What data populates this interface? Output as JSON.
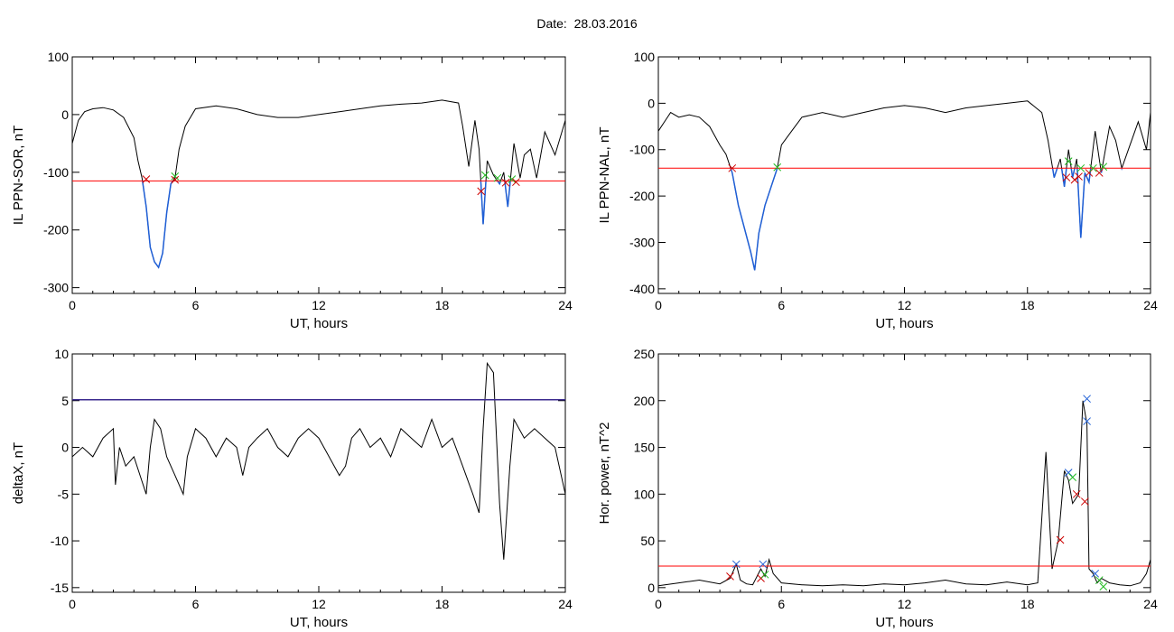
{
  "header": {
    "date_label": "Date:",
    "date_value": "28.03.2016"
  },
  "chart_data": [
    {
      "type": "line",
      "xlabel": "UT, hours",
      "ylabel": "IL PPN-SOR, nT",
      "xlim": [
        0,
        24
      ],
      "ylim": [
        -310,
        100
      ],
      "xticks": [
        0,
        6,
        12,
        18,
        24
      ],
      "yticks": [
        100,
        0,
        -100,
        -200,
        -300
      ],
      "threshold": -115,
      "colors": {
        "line": "#000000",
        "threshold": "#ff0000",
        "below": "#1f5fd6",
        "start_marker": "#cc0000",
        "end_marker": "#22bb22"
      },
      "series": [
        {
          "x": [
            0,
            0.3,
            0.6,
            1,
            1.5,
            2,
            2.5,
            3,
            3.2,
            3.4,
            3.6,
            3.8,
            4,
            4.2,
            4.4,
            4.6,
            4.8,
            5,
            5.2,
            5.5,
            6,
            7,
            8,
            9,
            10,
            11,
            12,
            13,
            14,
            15,
            16,
            17,
            18,
            18.8,
            19,
            19.3,
            19.6,
            19.8,
            20,
            20.2,
            20.5,
            20.8,
            21,
            21.2,
            21.5,
            21.8,
            22,
            22.3,
            22.6,
            23,
            23.5,
            24
          ],
          "y": [
            -50,
            -10,
            5,
            10,
            12,
            8,
            -5,
            -40,
            -80,
            -110,
            -160,
            -230,
            -255,
            -265,
            -240,
            -170,
            -120,
            -110,
            -60,
            -20,
            10,
            15,
            10,
            0,
            -5,
            -5,
            0,
            5,
            10,
            15,
            18,
            20,
            25,
            20,
            -20,
            -90,
            -10,
            -60,
            -190,
            -80,
            -105,
            -120,
            -100,
            -160,
            -50,
            -110,
            -70,
            -60,
            -110,
            -30,
            -70,
            -10
          ]
        }
      ],
      "markers": [
        {
          "x": 3.6,
          "y": -112,
          "kind": "start"
        },
        {
          "x": 5.0,
          "y": -107,
          "kind": "end"
        },
        {
          "x": 5.0,
          "y": -113,
          "kind": "start"
        },
        {
          "x": 19.9,
          "y": -133,
          "kind": "start"
        },
        {
          "x": 20.1,
          "y": -105,
          "kind": "end"
        },
        {
          "x": 20.7,
          "y": -110,
          "kind": "end"
        },
        {
          "x": 21.1,
          "y": -118,
          "kind": "start"
        },
        {
          "x": 21.4,
          "y": -112,
          "kind": "end"
        },
        {
          "x": 21.6,
          "y": -117,
          "kind": "start"
        }
      ]
    },
    {
      "type": "line",
      "xlabel": "UT, hours",
      "ylabel": "IL PPN-NAL, nT",
      "xlim": [
        0,
        24
      ],
      "ylim": [
        -410,
        100
      ],
      "xticks": [
        0,
        6,
        12,
        18,
        24
      ],
      "yticks": [
        100,
        0,
        -100,
        -200,
        -300,
        -400
      ],
      "threshold": -140,
      "colors": {
        "line": "#000000",
        "threshold": "#ff0000",
        "below": "#1f5fd6",
        "start_marker": "#cc0000",
        "end_marker": "#22bb22"
      },
      "series": [
        {
          "x": [
            0,
            0.3,
            0.6,
            1,
            1.5,
            2,
            2.5,
            3,
            3.3,
            3.6,
            3.9,
            4.2,
            4.5,
            4.7,
            4.9,
            5.2,
            5.5,
            5.8,
            6,
            6.5,
            7,
            8,
            9,
            10,
            11,
            12,
            13,
            14,
            15,
            16,
            17,
            18,
            18.7,
            19,
            19.3,
            19.6,
            19.8,
            20,
            20.2,
            20.4,
            20.6,
            20.8,
            21,
            21.3,
            21.6,
            22,
            22.3,
            22.6,
            23,
            23.4,
            23.8,
            24
          ],
          "y": [
            -60,
            -40,
            -20,
            -30,
            -25,
            -30,
            -50,
            -90,
            -110,
            -150,
            -220,
            -270,
            -320,
            -360,
            -280,
            -220,
            -180,
            -140,
            -90,
            -60,
            -30,
            -20,
            -30,
            -20,
            -10,
            -5,
            -10,
            -20,
            -10,
            -5,
            0,
            5,
            -20,
            -80,
            -160,
            -120,
            -180,
            -100,
            -160,
            -120,
            -290,
            -150,
            -170,
            -60,
            -150,
            -50,
            -80,
            -140,
            -90,
            -40,
            -100,
            -20
          ]
        }
      ],
      "markers": [
        {
          "x": 3.6,
          "y": -140,
          "kind": "start"
        },
        {
          "x": 5.8,
          "y": -138,
          "kind": "end"
        },
        {
          "x": 19.9,
          "y": -160,
          "kind": "start"
        },
        {
          "x": 20.0,
          "y": -125,
          "kind": "end"
        },
        {
          "x": 20.3,
          "y": -165,
          "kind": "start"
        },
        {
          "x": 20.5,
          "y": -158,
          "kind": "start"
        },
        {
          "x": 20.6,
          "y": -140,
          "kind": "end"
        },
        {
          "x": 21.0,
          "y": -150,
          "kind": "start"
        },
        {
          "x": 21.2,
          "y": -140,
          "kind": "end"
        },
        {
          "x": 21.5,
          "y": -150,
          "kind": "start"
        },
        {
          "x": 21.7,
          "y": -137,
          "kind": "end"
        }
      ]
    },
    {
      "type": "line",
      "xlabel": "UT, hours",
      "ylabel": "deltaX, nT",
      "xlim": [
        0,
        24
      ],
      "ylim": [
        -15.5,
        10
      ],
      "xticks": [
        0,
        6,
        12,
        18,
        24
      ],
      "yticks": [
        10,
        5,
        0,
        -5,
        -10,
        -15
      ],
      "threshold": 5.1,
      "colors": {
        "line": "#000000",
        "threshold": "#3b2a8f"
      },
      "series": [
        {
          "x": [
            0,
            0.5,
            1,
            1.5,
            2,
            2.1,
            2.3,
            2.6,
            3,
            3.3,
            3.6,
            3.8,
            4,
            4.3,
            4.6,
            5,
            5.4,
            5.6,
            6,
            6.5,
            7,
            7.5,
            8,
            8.3,
            8.6,
            9,
            9.5,
            10,
            10.5,
            11,
            11.5,
            12,
            12.5,
            13,
            13.3,
            13.6,
            14,
            14.5,
            15,
            15.5,
            16,
            16.5,
            17,
            17.5,
            18,
            18.5,
            19,
            19.5,
            19.8,
            20,
            20.2,
            20.5,
            20.8,
            21,
            21.3,
            21.5,
            22,
            22.5,
            23,
            23.5,
            24
          ],
          "y": [
            -1,
            0,
            -1,
            1,
            2,
            -4,
            0,
            -2,
            -1,
            -3,
            -5,
            0,
            3,
            2,
            -1,
            -3,
            -5,
            -1,
            2,
            1,
            -1,
            1,
            0,
            -3,
            0,
            1,
            2,
            0,
            -1,
            1,
            2,
            1,
            -1,
            -3,
            -2,
            1,
            2,
            0,
            1,
            -1,
            2,
            1,
            0,
            3,
            0,
            1,
            -2,
            -5,
            -7,
            2,
            9,
            8,
            -6,
            -12,
            -2,
            3,
            1,
            2,
            1,
            0,
            -5
          ]
        }
      ]
    },
    {
      "type": "line",
      "xlabel": "UT, hours",
      "ylabel": "Hor. power, nT^2",
      "xlim": [
        0,
        24
      ],
      "ylim": [
        -5,
        250
      ],
      "xticks": [
        0,
        6,
        12,
        18,
        24
      ],
      "yticks": [
        250,
        200,
        150,
        100,
        50,
        0
      ],
      "threshold": 23,
      "colors": {
        "line": "#000000",
        "threshold": "#ff0000",
        "start_marker": "#cc0000",
        "end_marker": "#22bb22",
        "peak_marker": "#1f5fd6"
      },
      "series": [
        {
          "x": [
            0,
            1,
            2,
            3,
            3.5,
            3.8,
            4,
            4.3,
            4.6,
            5,
            5.2,
            5.4,
            5.6,
            6,
            7,
            8,
            9,
            10,
            11,
            12,
            13,
            14,
            15,
            16,
            17,
            18,
            18.5,
            18.9,
            19.2,
            19.5,
            19.8,
            20,
            20.2,
            20.5,
            20.7,
            20.9,
            21,
            21.2,
            21.4,
            21.6,
            22,
            22.5,
            23,
            23.5,
            23.8,
            24
          ],
          "y": [
            2,
            5,
            8,
            4,
            10,
            25,
            8,
            4,
            3,
            20,
            12,
            30,
            15,
            5,
            3,
            2,
            3,
            2,
            4,
            3,
            5,
            8,
            4,
            3,
            6,
            3,
            5,
            145,
            20,
            50,
            125,
            115,
            90,
            100,
            200,
            175,
            20,
            15,
            5,
            10,
            5,
            3,
            2,
            5,
            15,
            30
          ]
        }
      ],
      "markers": [
        {
          "x": 3.5,
          "y": 12,
          "kind": "start"
        },
        {
          "x": 3.8,
          "y": 25,
          "kind": "peak"
        },
        {
          "x": 5.0,
          "y": 10,
          "kind": "start"
        },
        {
          "x": 5.1,
          "y": 25,
          "kind": "peak"
        },
        {
          "x": 5.2,
          "y": 14,
          "kind": "end"
        },
        {
          "x": 19.6,
          "y": 51,
          "kind": "start"
        },
        {
          "x": 20.0,
          "y": 123,
          "kind": "peak"
        },
        {
          "x": 20.2,
          "y": 118,
          "kind": "end"
        },
        {
          "x": 20.4,
          "y": 100,
          "kind": "start"
        },
        {
          "x": 20.8,
          "y": 92,
          "kind": "start"
        },
        {
          "x": 20.9,
          "y": 178,
          "kind": "peak"
        },
        {
          "x": 20.9,
          "y": 202,
          "kind": "peak"
        },
        {
          "x": 21.3,
          "y": 15,
          "kind": "peak"
        },
        {
          "x": 21.5,
          "y": 8,
          "kind": "end"
        },
        {
          "x": 21.7,
          "y": 1,
          "kind": "end"
        }
      ]
    }
  ]
}
